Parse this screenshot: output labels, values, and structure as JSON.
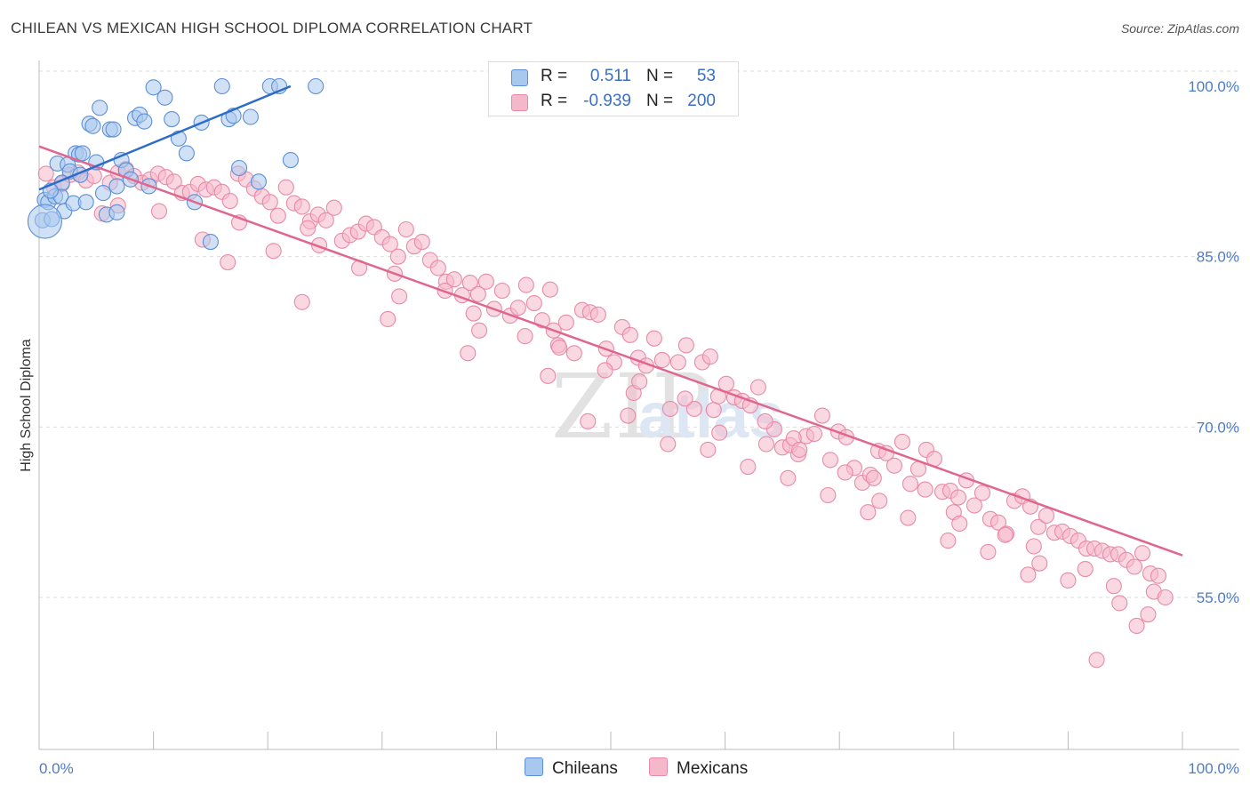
{
  "title": "CHILEAN VS MEXICAN HIGH SCHOOL DIPLOMA CORRELATION CHART",
  "source": "Source: ZipAtlas.com",
  "watermark": {
    "zip": "ZIP",
    "atlas": "atlas"
  },
  "legend": {
    "rows": [
      {
        "r_label": "R =",
        "r_value": "0.511",
        "n_label": "N =",
        "n_value": "53"
      },
      {
        "r_label": "R =",
        "r_value": "-0.939",
        "n_label": "N =",
        "n_value": "200"
      }
    ]
  },
  "bottom_legend": {
    "chileans": "Chileans",
    "mexicans": "Mexicans"
  },
  "colors": {
    "blue_fill": "#a9c8ee",
    "blue_edge": "#5c8fd6",
    "blue_line": "#2d6cc8",
    "pink_fill": "#f5b8cb",
    "pink_edge": "#e88aa8",
    "pink_line": "#e0668f",
    "tick_text": "#4a7cc7",
    "grid": "#dddddd"
  },
  "chart_data": {
    "type": "scatter",
    "title": "CHILEAN VS MEXICAN HIGH SCHOOL DIPLOMA CORRELATION CHART",
    "xlabel": "",
    "ylabel": "High School Diploma",
    "xlim": [
      0,
      100
    ],
    "ylim": [
      40,
      101.5
    ],
    "x_tick_labels": [
      "0.0%",
      "100.0%"
    ],
    "y_ticks": [
      {
        "value": 100,
        "label": "100.0%"
      },
      {
        "value": 85,
        "label": "85.0%"
      },
      {
        "value": 70,
        "label": "70.0%"
      },
      {
        "value": 55,
        "label": "55.0%"
      }
    ],
    "series": [
      {
        "name": "Chileans",
        "R": 0.511,
        "N": 53,
        "trend": {
          "x": [
            0,
            22
          ],
          "y": [
            90.9,
            100
          ]
        },
        "points": [
          [
            0.3,
            88.2
          ],
          [
            0.5,
            90
          ],
          [
            0.8,
            89.8
          ],
          [
            1.1,
            88.3
          ],
          [
            1.4,
            90.3
          ],
          [
            1.6,
            93.2
          ],
          [
            1.9,
            90.3
          ],
          [
            2.2,
            89
          ],
          [
            2.5,
            93.1
          ],
          [
            2.7,
            92.5
          ],
          [
            3.0,
            89.7
          ],
          [
            3.2,
            94.1
          ],
          [
            3.5,
            94
          ],
          [
            3.8,
            94.1
          ],
          [
            4.1,
            89.8
          ],
          [
            4.4,
            96.7
          ],
          [
            4.7,
            96.5
          ],
          [
            5.0,
            93.3
          ],
          [
            5.3,
            98.1
          ],
          [
            5.6,
            90.6
          ],
          [
            5.9,
            88.7
          ],
          [
            6.2,
            96.2
          ],
          [
            6.5,
            96.2
          ],
          [
            6.8,
            91.2
          ],
          [
            7.2,
            93.5
          ],
          [
            7.6,
            92.6
          ],
          [
            8.0,
            91.8
          ],
          [
            8.4,
            97.2
          ],
          [
            8.8,
            97.5
          ],
          [
            9.2,
            96.9
          ],
          [
            9.6,
            91.2
          ],
          [
            10.0,
            99.9
          ],
          [
            11.0,
            99.0
          ],
          [
            11.6,
            97.1
          ],
          [
            12.2,
            95.4
          ],
          [
            12.9,
            94.1
          ],
          [
            13.6,
            89.8
          ],
          [
            14.2,
            96.8
          ],
          [
            15.0,
            86.3
          ],
          [
            16.0,
            100
          ],
          [
            16.6,
            97.1
          ],
          [
            17.0,
            97.4
          ],
          [
            17.5,
            92.8
          ],
          [
            18.5,
            97.3
          ],
          [
            19.2,
            91.6
          ],
          [
            20.2,
            100
          ],
          [
            21.0,
            100
          ],
          [
            22.0,
            93.5
          ],
          [
            2.0,
            91.5
          ],
          [
            3.6,
            92.2
          ],
          [
            1.0,
            90.8
          ],
          [
            6.8,
            88.9
          ],
          [
            24.2,
            100
          ]
        ]
      },
      {
        "name": "Mexicans",
        "R": -0.939,
        "N": 200,
        "trend": {
          "x": [
            0,
            100
          ],
          "y": [
            94.7,
            58.7
          ]
        },
        "points": [
          [
            0.6,
            92.3
          ],
          [
            1.3,
            91.1
          ],
          [
            2.0,
            91.4
          ],
          [
            2.7,
            92.2
          ],
          [
            3.4,
            92.4
          ],
          [
            4.1,
            91.7
          ],
          [
            4.8,
            92.1
          ],
          [
            5.5,
            88.8
          ],
          [
            6.2,
            91.5
          ],
          [
            6.9,
            92.4
          ],
          [
            7.6,
            92.7
          ],
          [
            8.3,
            92.1
          ],
          [
            9.0,
            91.5
          ],
          [
            9.7,
            91.8
          ],
          [
            10.4,
            92.3
          ],
          [
            11.1,
            92.0
          ],
          [
            11.8,
            91.6
          ],
          [
            12.5,
            90.6
          ],
          [
            13.2,
            90.7
          ],
          [
            13.9,
            91.4
          ],
          [
            14.6,
            90.9
          ],
          [
            15.3,
            91.1
          ],
          [
            16.0,
            90.7
          ],
          [
            16.7,
            89.9
          ],
          [
            17.4,
            92.3
          ],
          [
            18.1,
            91.8
          ],
          [
            18.8,
            91.0
          ],
          [
            19.5,
            90.3
          ],
          [
            20.2,
            89.8
          ],
          [
            20.9,
            88.6
          ],
          [
            21.6,
            91.1
          ],
          [
            22.3,
            89.7
          ],
          [
            23.0,
            89.4
          ],
          [
            23.7,
            88.1
          ],
          [
            24.4,
            88.7
          ],
          [
            25.1,
            88.2
          ],
          [
            25.8,
            89.3
          ],
          [
            26.5,
            86.4
          ],
          [
            27.2,
            86.9
          ],
          [
            27.9,
            87.2
          ],
          [
            28.6,
            87.9
          ],
          [
            29.3,
            87.6
          ],
          [
            30.0,
            86.7
          ],
          [
            30.7,
            86.1
          ],
          [
            31.4,
            85.0
          ],
          [
            32.1,
            87.4
          ],
          [
            32.8,
            85.9
          ],
          [
            33.5,
            86.3
          ],
          [
            34.2,
            84.7
          ],
          [
            34.9,
            84.0
          ],
          [
            35.6,
            82.8
          ],
          [
            36.3,
            83.0
          ],
          [
            37.0,
            81.6
          ],
          [
            37.7,
            82.7
          ],
          [
            38.4,
            81.7
          ],
          [
            39.1,
            82.8
          ],
          [
            39.8,
            80.4
          ],
          [
            40.5,
            82.0
          ],
          [
            41.2,
            79.8
          ],
          [
            41.9,
            80.5
          ],
          [
            42.6,
            82.5
          ],
          [
            43.3,
            80.9
          ],
          [
            44.0,
            79.4
          ],
          [
            44.7,
            82.1
          ],
          [
            45.4,
            77.2
          ],
          [
            46.1,
            79.2
          ],
          [
            46.8,
            76.5
          ],
          [
            47.5,
            80.3
          ],
          [
            48.2,
            80.1
          ],
          [
            48.9,
            79.9
          ],
          [
            49.6,
            76.9
          ],
          [
            50.3,
            75.7
          ],
          [
            51.0,
            78.8
          ],
          [
            51.7,
            78.1
          ],
          [
            52.4,
            76.1
          ],
          [
            53.1,
            75.4
          ],
          [
            53.8,
            77.8
          ],
          [
            54.5,
            75.9
          ],
          [
            55.2,
            71.6
          ],
          [
            55.9,
            75.7
          ],
          [
            56.6,
            77.2
          ],
          [
            57.3,
            71.6
          ],
          [
            58.0,
            75.7
          ],
          [
            58.7,
            76.2
          ],
          [
            59.4,
            72.7
          ],
          [
            60.1,
            73.8
          ],
          [
            60.8,
            72.6
          ],
          [
            61.5,
            72.3
          ],
          [
            62.2,
            71.9
          ],
          [
            62.9,
            73.5
          ],
          [
            63.6,
            68.5
          ],
          [
            64.3,
            69.8
          ],
          [
            65.0,
            68.2
          ],
          [
            65.7,
            68.4
          ],
          [
            66.4,
            67.6
          ],
          [
            67.1,
            69.2
          ],
          [
            67.8,
            69.4
          ],
          [
            68.5,
            71.0
          ],
          [
            69.2,
            67.1
          ],
          [
            69.9,
            69.6
          ],
          [
            70.6,
            69.1
          ],
          [
            71.3,
            66.4
          ],
          [
            72.0,
            65.1
          ],
          [
            72.7,
            65.8
          ],
          [
            73.4,
            67.9
          ],
          [
            74.1,
            67.7
          ],
          [
            74.8,
            66.6
          ],
          [
            75.5,
            68.7
          ],
          [
            76.2,
            65.0
          ],
          [
            76.9,
            66.3
          ],
          [
            77.6,
            68.0
          ],
          [
            78.3,
            67.2
          ],
          [
            79.0,
            64.3
          ],
          [
            79.7,
            64.4
          ],
          [
            80.4,
            63.8
          ],
          [
            81.1,
            65.3
          ],
          [
            81.8,
            63.1
          ],
          [
            82.5,
            64.2
          ],
          [
            83.2,
            61.9
          ],
          [
            83.9,
            61.6
          ],
          [
            84.6,
            60.6
          ],
          [
            85.3,
            63.5
          ],
          [
            86.0,
            63.9
          ],
          [
            86.7,
            63.0
          ],
          [
            87.4,
            61.2
          ],
          [
            88.1,
            62.2
          ],
          [
            88.8,
            60.7
          ],
          [
            89.5,
            60.8
          ],
          [
            90.2,
            60.4
          ],
          [
            90.9,
            60.0
          ],
          [
            91.6,
            59.3
          ],
          [
            92.3,
            59.3
          ],
          [
            93.0,
            59.1
          ],
          [
            93.7,
            58.8
          ],
          [
            94.4,
            58.8
          ],
          [
            95.1,
            58.3
          ],
          [
            95.8,
            57.7
          ],
          [
            96.5,
            58.9
          ],
          [
            97.2,
            57.1
          ],
          [
            97.9,
            56.9
          ],
          [
            6.9,
            89.5
          ],
          [
            14.3,
            86.5
          ],
          [
            23.5,
            87.5
          ],
          [
            31.1,
            83.5
          ],
          [
            38.0,
            80.0
          ],
          [
            45.0,
            78.5
          ],
          [
            52.0,
            73.0
          ],
          [
            59.0,
            71.5
          ],
          [
            66.0,
            69.0
          ],
          [
            73.0,
            65.5
          ],
          [
            80.0,
            62.5
          ],
          [
            87.0,
            59.5
          ],
          [
            94.0,
            56.0
          ],
          [
            20.5,
            85.5
          ],
          [
            28.0,
            84.0
          ],
          [
            35.5,
            82.0
          ],
          [
            42.5,
            78.0
          ],
          [
            49.5,
            75.0
          ],
          [
            56.5,
            72.5
          ],
          [
            63.5,
            70.5
          ],
          [
            70.5,
            66.0
          ],
          [
            77.5,
            64.5
          ],
          [
            84.5,
            60.5
          ],
          [
            91.5,
            57.5
          ],
          [
            97.5,
            55.5
          ],
          [
            10.5,
            89.0
          ],
          [
            17.5,
            88.0
          ],
          [
            24.5,
            86.0
          ],
          [
            31.5,
            81.5
          ],
          [
            38.5,
            78.5
          ],
          [
            45.5,
            77.0
          ],
          [
            52.5,
            74.0
          ],
          [
            59.5,
            69.5
          ],
          [
            66.5,
            68.0
          ],
          [
            73.5,
            63.5
          ],
          [
            80.5,
            61.5
          ],
          [
            87.5,
            58.0
          ],
          [
            94.5,
            54.5
          ],
          [
            48.0,
            70.5
          ],
          [
            55.0,
            68.5
          ],
          [
            62.0,
            66.5
          ],
          [
            69.0,
            64.0
          ],
          [
            76.0,
            62.0
          ],
          [
            83.0,
            59.0
          ],
          [
            90.0,
            56.5
          ],
          [
            97.0,
            53.5
          ],
          [
            92.5,
            49.5
          ],
          [
            98.5,
            55.0
          ],
          [
            96.0,
            52.5
          ],
          [
            86.5,
            57.0
          ],
          [
            79.5,
            60.0
          ],
          [
            72.5,
            62.5
          ],
          [
            65.5,
            65.5
          ],
          [
            58.5,
            68.0
          ],
          [
            51.5,
            71.0
          ],
          [
            44.5,
            74.5
          ],
          [
            37.5,
            76.5
          ],
          [
            30.5,
            79.5
          ],
          [
            23.0,
            81.0
          ],
          [
            16.5,
            84.5
          ]
        ]
      }
    ]
  }
}
